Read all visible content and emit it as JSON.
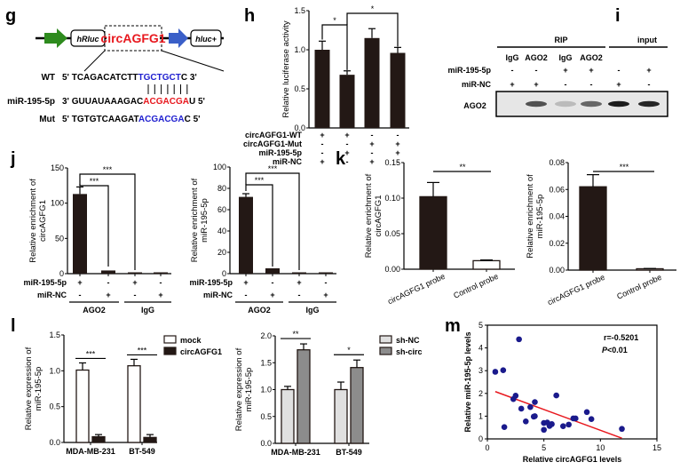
{
  "figure": {
    "panels": [
      "g",
      "h",
      "i",
      "j",
      "k",
      "l",
      "m"
    ]
  },
  "panel_g": {
    "letter": "g",
    "construct": {
      "promoter_color": "#2e8b1e",
      "elements": [
        "hRluc",
        "circAGFG1",
        "hluc+"
      ],
      "insert_color": "#e8181e",
      "arrow2_color": "#3a5fc8"
    },
    "rows": [
      {
        "label": "WT",
        "prime_start": "5'",
        "black": "TCAGACATCTT",
        "colored": "TGCTGCT",
        "tail": "C",
        "prime_end": "3'",
        "color": "#2020d0"
      },
      {
        "label": "miR-195-5p",
        "prime_start": "3'",
        "black": "GUUAUAAAGAC",
        "colored": "ACGACGA",
        "tail": "U",
        "prime_end": "5'",
        "color": "#e8181e"
      },
      {
        "label": "Mut",
        "prime_start": "5'",
        "black": "TGTGTCAAGAT",
        "colored": "ACGACGA",
        "tail": "C",
        "prime_end": "5'",
        "color": "#2020d0"
      }
    ],
    "pairing_lines": 7
  },
  "panel_i": {
    "letter": "i",
    "group_labels": [
      "RIP",
      "input"
    ],
    "lane_labels": [
      "IgG",
      "AGO2",
      "IgG",
      "AGO2",
      "",
      ""
    ],
    "row_labels": [
      "miR-195-5p",
      "miR-NC"
    ],
    "rows": [
      [
        "-",
        "-",
        "+",
        "+",
        "-",
        "+"
      ],
      [
        "+",
        "+",
        "-",
        "-",
        "+",
        "-"
      ]
    ],
    "blot_label": "AGO2",
    "band_intensity": [
      0.0,
      0.7,
      0.2,
      0.6,
      0.95,
      0.9
    ]
  },
  "chart_data": [
    {
      "id": "h",
      "letter": "h",
      "type": "bar",
      "ylabel": "Relative luciferase activity",
      "ylim": [
        0,
        1.5
      ],
      "yticks": [
        "0.0",
        "0.5",
        "1.0",
        "1.5"
      ],
      "yticks_values": [
        0,
        0.5,
        1.0,
        1.5
      ],
      "values": [
        1.0,
        0.68,
        1.15,
        0.96
      ],
      "errors": [
        0.11,
        0.05,
        0.12,
        0.07
      ],
      "bar_color": "#231815",
      "condition_labels": [
        "circAGFG1-WT",
        "circAGFG1-Mut",
        "miR-195-5p",
        "miR-NC"
      ],
      "conditions": [
        [
          "+",
          "+",
          "-",
          "-"
        ],
        [
          "-",
          "-",
          "+",
          "+"
        ],
        [
          "-",
          "+",
          "-",
          "+"
        ],
        [
          "+",
          "-",
          "+",
          "-"
        ]
      ],
      "significance": [
        {
          "from": 0,
          "to": 1,
          "label": "*"
        },
        {
          "from": 1,
          "to": 3,
          "label": "*"
        }
      ]
    },
    {
      "id": "j1",
      "letter": "j",
      "type": "bar",
      "ylabel": [
        "Relative enrichment of",
        "circAGFG1"
      ],
      "ylim": [
        0,
        150
      ],
      "yticks": [
        "0",
        "50",
        "100",
        "150"
      ],
      "yticks_values": [
        0,
        50,
        100,
        150
      ],
      "values": [
        113,
        4.5,
        1.0,
        1.5
      ],
      "errors": [
        10,
        0.8,
        0.2,
        0.3
      ],
      "bar_color": "#231815",
      "condition_labels": [
        "miR-195-5p",
        "miR-NC"
      ],
      "conditions": [
        [
          "+",
          "-",
          "+",
          "-"
        ],
        [
          "-",
          "+",
          "-",
          "+"
        ]
      ],
      "groups": [
        "AGO2",
        "IgG"
      ],
      "significance": [
        {
          "from": 0,
          "to": 1,
          "label": "***"
        },
        {
          "from": 0,
          "to": 2,
          "label": "***"
        }
      ]
    },
    {
      "id": "j2",
      "type": "bar",
      "ylabel": [
        "Relative enrichment of",
        "miR-195-5p"
      ],
      "ylim": [
        0,
        100
      ],
      "yticks": [
        "0",
        "20",
        "40",
        "60",
        "80",
        "100"
      ],
      "yticks_values": [
        0,
        20,
        40,
        60,
        80,
        100
      ],
      "values": [
        72,
        5,
        1.0,
        1.0
      ],
      "errors": [
        3,
        0.7,
        0.2,
        0.2
      ],
      "bar_color": "#231815",
      "condition_labels": [
        "miR-195-5p",
        "miR-NC"
      ],
      "conditions": [
        [
          "+",
          "-",
          "+",
          "-"
        ],
        [
          "-",
          "+",
          "-",
          "+"
        ]
      ],
      "groups": [
        "AGO2",
        "IgG"
      ],
      "significance": [
        {
          "from": 0,
          "to": 1,
          "label": "***"
        },
        {
          "from": 0,
          "to": 2,
          "label": "***"
        }
      ]
    },
    {
      "id": "k1",
      "letter": "k",
      "type": "bar",
      "ylabel": [
        "Relative enrichment of",
        "circAGFG1"
      ],
      "ylim": [
        0,
        0.15
      ],
      "yticks": [
        "0.00",
        "0.05",
        "0.10",
        "0.15"
      ],
      "yticks_values": [
        0,
        0.05,
        0.1,
        0.15
      ],
      "categories": [
        "circAGFG1 probe",
        "Control probe"
      ],
      "values": [
        0.102,
        0.012
      ],
      "errors": [
        0.02,
        0.001
      ],
      "bar_colors": [
        "#231815",
        "#ffffff"
      ],
      "significance": [
        {
          "from": 0,
          "to": 1,
          "label": "**"
        }
      ]
    },
    {
      "id": "k2",
      "type": "bar",
      "ylabel": [
        "Relative enrichment of",
        "miR-195-5p"
      ],
      "ylim": [
        0,
        0.08
      ],
      "yticks": [
        "0.00",
        "0.02",
        "0.04",
        "0.06",
        "0.08"
      ],
      "yticks_values": [
        0,
        0.02,
        0.04,
        0.06,
        0.08
      ],
      "categories": [
        "circAGFG1 probe",
        "Control probe"
      ],
      "values": [
        0.062,
        0.001
      ],
      "errors": [
        0.009,
        0.0002
      ],
      "bar_colors": [
        "#231815",
        "#ffffff"
      ],
      "significance": [
        {
          "from": 0,
          "to": 1,
          "label": "***"
        }
      ]
    },
    {
      "id": "l1",
      "letter": "l",
      "type": "bar",
      "ylabel": [
        "Relative expression of",
        "miR-195-5p"
      ],
      "ylim": [
        0,
        1.5
      ],
      "yticks": [
        "0.0",
        "0.5",
        "1.0",
        "1.5"
      ],
      "yticks_values": [
        0,
        0.5,
        1.0,
        1.5
      ],
      "categories": [
        "MDA-MB-231",
        "BT-549"
      ],
      "series": [
        {
          "name": "mock",
          "color": "#ffffff",
          "values": [
            1.01,
            1.07
          ],
          "errors": [
            0.1,
            0.09
          ]
        },
        {
          "name": "circAGFG1",
          "color": "#231815",
          "values": [
            0.08,
            0.07
          ],
          "errors": [
            0.03,
            0.04
          ]
        }
      ],
      "significance": [
        {
          "category": 0,
          "label": "***"
        },
        {
          "category": 1,
          "label": "***"
        }
      ],
      "legend": "top-right"
    },
    {
      "id": "l2",
      "type": "bar",
      "ylabel": [
        "Relative expression of",
        "miR-195-5p"
      ],
      "ylim": [
        0,
        2.0
      ],
      "yticks": [
        "0.0",
        "0.5",
        "1.0",
        "1.5",
        "2.0"
      ],
      "yticks_values": [
        0,
        0.5,
        1.0,
        1.5,
        2.0
      ],
      "categories": [
        "MDA-MB-231",
        "BT-549"
      ],
      "series": [
        {
          "name": "sh-NC",
          "color": "#e0e0e0",
          "values": [
            1.0,
            1.0
          ],
          "errors": [
            0.06,
            0.14
          ]
        },
        {
          "name": "sh-circ",
          "color": "#8c8c8c",
          "values": [
            1.74,
            1.41
          ],
          "errors": [
            0.11,
            0.14
          ]
        }
      ],
      "significance": [
        {
          "category": 0,
          "label": "**"
        },
        {
          "category": 1,
          "label": "*"
        }
      ],
      "legend": "top-right"
    },
    {
      "id": "m",
      "letter": "m",
      "type": "scatter",
      "xlabel": "Relative circAGFG1 levels",
      "ylabel": "Relative miR-195-5p levels",
      "xlim": [
        0,
        15
      ],
      "ylim": [
        0,
        5
      ],
      "xticks": [
        "0",
        "5",
        "10",
        "15"
      ],
      "xticks_values": [
        0,
        5,
        10,
        15
      ],
      "yticks": [
        "0",
        "1",
        "2",
        "3",
        "4",
        "5"
      ],
      "yticks_values": [
        0,
        1,
        2,
        3,
        4,
        5
      ],
      "point_color": "#1a1a8c",
      "line_color": "#e8181e",
      "points": [
        [
          0.7,
          2.95
        ],
        [
          1.4,
          3.02
        ],
        [
          1.5,
          0.52
        ],
        [
          2.3,
          1.75
        ],
        [
          2.5,
          1.9
        ],
        [
          2.8,
          4.38
        ],
        [
          3.0,
          1.33
        ],
        [
          3.4,
          0.77
        ],
        [
          3.8,
          1.4
        ],
        [
          4.2,
          1.62
        ],
        [
          4.1,
          0.98
        ],
        [
          4.2,
          1.0
        ],
        [
          5.0,
          0.7
        ],
        [
          5.0,
          0.4
        ],
        [
          5.3,
          0.72
        ],
        [
          5.5,
          0.57
        ],
        [
          5.7,
          0.65
        ],
        [
          6.1,
          1.91
        ],
        [
          6.7,
          0.56
        ],
        [
          7.2,
          0.63
        ],
        [
          7.6,
          0.9
        ],
        [
          7.8,
          0.9
        ],
        [
          8.8,
          1.18
        ],
        [
          9.2,
          0.87
        ],
        [
          11.9,
          0.44
        ]
      ],
      "fit_line": [
        [
          0.7,
          2.08
        ],
        [
          11.9,
          0.03
        ]
      ],
      "annotations": [
        "r=-0.5201",
        "P<0.01"
      ]
    }
  ]
}
